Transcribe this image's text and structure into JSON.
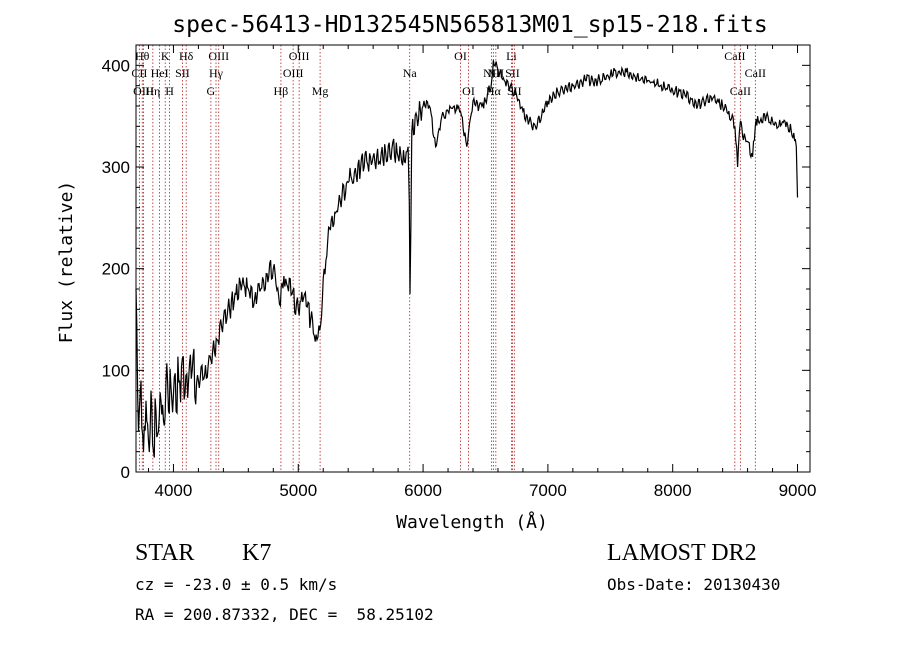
{
  "chart_data": {
    "type": "line",
    "title": "spec-56413-HD132545N565813M01_sp15-218.fits",
    "xlabel": "Wavelength (Å)",
    "ylabel": "Flux (relative)",
    "xlim": [
      3700,
      9100
    ],
    "ylim": [
      0,
      420
    ],
    "xticks": [
      4000,
      5000,
      6000,
      7000,
      8000,
      9000
    ],
    "yticks": [
      0,
      100,
      200,
      300,
      400
    ],
    "grid": false,
    "series": [
      {
        "x": [
          3700,
          3720,
          3740,
          3760,
          3780,
          3800,
          3820,
          3840,
          3860,
          3880,
          3900,
          3920,
          3940,
          3960,
          3980,
          4000,
          4050,
          4100,
          4150,
          4200,
          4250,
          4300,
          4350,
          4400,
          4450,
          4500,
          4550,
          4600,
          4650,
          4700,
          4750,
          4800,
          4850,
          4870,
          4900,
          4950,
          5000,
          5050,
          5100,
          5150,
          5180,
          5200,
          5250,
          5300,
          5350,
          5400,
          5450,
          5500,
          5550,
          5600,
          5650,
          5700,
          5750,
          5800,
          5850,
          5880,
          5890,
          5895,
          5910,
          5950,
          6000,
          6050,
          6100,
          6150,
          6200,
          6250,
          6300,
          6350,
          6400,
          6450,
          6500,
          6550,
          6563,
          6600,
          6650,
          6700,
          6750,
          6800,
          6850,
          6900,
          6950,
          7000,
          7100,
          7200,
          7300,
          7400,
          7500,
          7600,
          7700,
          7800,
          7900,
          8000,
          8100,
          8200,
          8300,
          8400,
          8450,
          8498,
          8520,
          8542,
          8560,
          8600,
          8640,
          8662,
          8680,
          8700,
          8750,
          8800,
          8850,
          8900,
          8950,
          8990,
          9000
        ],
        "y": [
          180,
          40,
          90,
          20,
          70,
          30,
          80,
          20,
          60,
          40,
          70,
          50,
          90,
          60,
          85,
          75,
          90,
          95,
          100,
          90,
          95,
          110,
          130,
          150,
          160,
          175,
          185,
          180,
          170,
          180,
          195,
          200,
          165,
          185,
          190,
          175,
          160,
          175,
          150,
          130,
          145,
          190,
          240,
          255,
          270,
          285,
          295,
          300,
          305,
          310,
          305,
          315,
          318,
          310,
          305,
          320,
          265,
          175,
          335,
          350,
          360,
          360,
          320,
          350,
          355,
          360,
          355,
          320,
          365,
          360,
          365,
          385,
          405,
          395,
          385,
          380,
          370,
          355,
          345,
          340,
          350,
          365,
          375,
          380,
          385,
          385,
          390,
          395,
          388,
          385,
          380,
          375,
          370,
          360,
          370,
          360,
          355,
          340,
          300,
          345,
          330,
          325,
          310,
          340,
          350,
          345,
          350,
          345,
          340,
          345,
          335,
          320,
          270
        ]
      }
    ],
    "spectral_lines": [
      {
        "label": "CII",
        "x": 3727,
        "row": 2
      },
      {
        "label": "Hθ",
        "x": 3750,
        "row": 1
      },
      {
        "label": "OIII",
        "x": 3760,
        "row": 3
      },
      {
        "label": "Hη",
        "x": 3835,
        "row": 3
      },
      {
        "label": "HeI",
        "x": 3889,
        "row": 2
      },
      {
        "label": "K",
        "x": 3934,
        "row": 1
      },
      {
        "label": "H",
        "x": 3969,
        "row": 3
      },
      {
        "label": "SII",
        "x": 4072,
        "row": 2
      },
      {
        "label": "Hδ",
        "x": 4102,
        "row": 1
      },
      {
        "label": "G",
        "x": 4300,
        "row": 3
      },
      {
        "label": "Hγ",
        "x": 4341,
        "row": 2
      },
      {
        "label": "OIII",
        "x": 4363,
        "row": 1
      },
      {
        "label": "Hβ",
        "x": 4861,
        "row": 3
      },
      {
        "label": "OIII",
        "x": 4959,
        "row": 2
      },
      {
        "label": "OIII",
        "x": 5007,
        "row": 1
      },
      {
        "label": "Mg",
        "x": 5175,
        "row": 3
      },
      {
        "label": "Na",
        "x": 5893,
        "row": 2
      },
      {
        "label": "OI",
        "x": 6300,
        "row": 1
      },
      {
        "label": "OI",
        "x": 6364,
        "row": 3
      },
      {
        "label": "NII",
        "x": 6548,
        "row": 2
      },
      {
        "label": "Hα",
        "x": 6563,
        "row": 3
      },
      {
        "label": "NII",
        "x": 6583,
        "row": 2
      },
      {
        "label": "Li",
        "x": 6708,
        "row": 1
      },
      {
        "label": "SII",
        "x": 6716,
        "row": 2
      },
      {
        "label": "SII",
        "x": 6731,
        "row": 3
      },
      {
        "label": "CaII",
        "x": 8498,
        "row": 1
      },
      {
        "label": "CaII",
        "x": 8542,
        "row": 3
      },
      {
        "label": "CaII",
        "x": 8662,
        "row": 2
      }
    ]
  },
  "info": {
    "object_class": "STAR",
    "subclass": "K7",
    "redshift": "cz = -23.0 ± 0.5 km/s",
    "coordinates": "RA = 200.87332, DEC =  58.25102",
    "survey": "LAMOST DR2",
    "obs_date": "Obs-Date: 20130430"
  }
}
